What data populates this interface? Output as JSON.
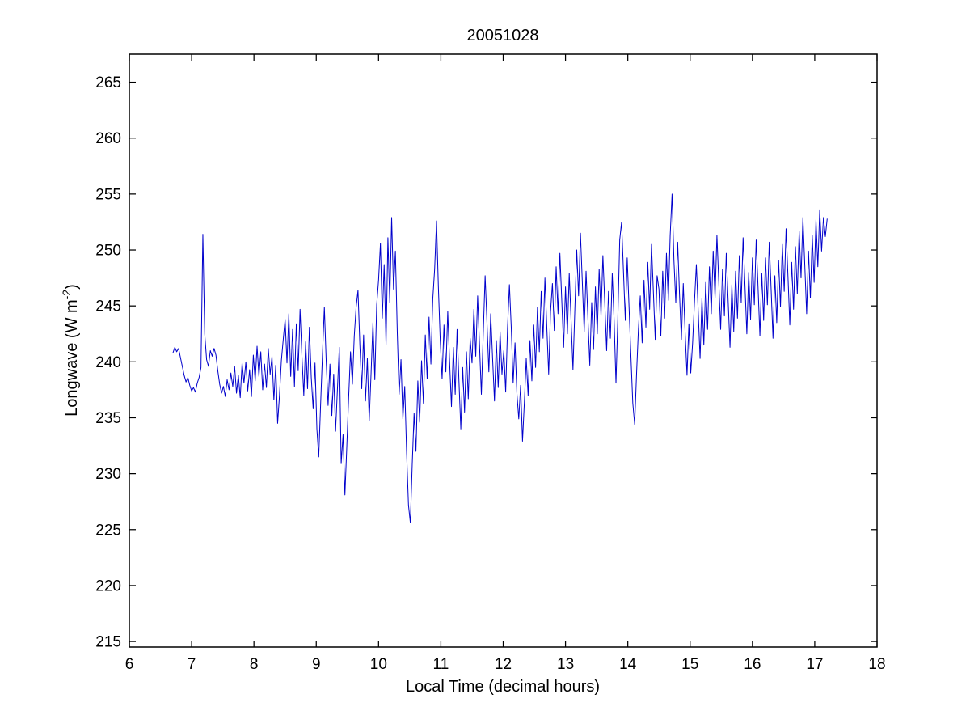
{
  "figure": {
    "title": "20051028",
    "xlabel": "Local Time (decimal hours)",
    "ylabel": {
      "prefix": "Longwave (W m",
      "superscript": "-2",
      "suffix": ")"
    }
  },
  "axes": {
    "xlim": [
      6,
      18
    ],
    "ylim": [
      214.5,
      267.5
    ],
    "xticks": [
      6,
      7,
      8,
      9,
      10,
      11,
      12,
      13,
      14,
      15,
      16,
      17,
      18
    ],
    "yticks": [
      215,
      220,
      225,
      230,
      235,
      240,
      245,
      250,
      255,
      260,
      265
    ],
    "box": true,
    "grid": false,
    "tick_direction": "in",
    "axis_color": "#000000"
  },
  "chart_data": {
    "type": "line",
    "title": "20051028",
    "xlabel": "Local Time (decimal hours)",
    "ylabel": "Longwave (W m^-2)",
    "line_color": "#0000CC",
    "line_width": 1,
    "xlim": [
      6,
      18
    ],
    "ylim": [
      214.5,
      267.5
    ],
    "x_start": 6.7,
    "x_step": 0.03,
    "y": [
      240.8,
      241.3,
      240.9,
      241.2,
      240.4,
      239.6,
      238.8,
      238.2,
      238.6,
      237.9,
      237.4,
      237.7,
      237.3,
      238.1,
      238.6,
      239.5,
      251.4,
      242.5,
      240.2,
      239.6,
      241.0,
      240.5,
      241.2,
      240.6,
      239.2,
      238.0,
      237.2,
      237.8,
      236.9,
      238.4,
      237.5,
      239.0,
      237.8,
      239.6,
      237.2,
      238.8,
      236.8,
      239.9,
      238.1,
      240.0,
      237.4,
      239.3,
      236.9,
      240.6,
      238.3,
      241.4,
      238.7,
      240.9,
      237.5,
      239.8,
      237.7,
      241.2,
      238.9,
      240.5,
      236.6,
      239.7,
      234.5,
      237.0,
      240.1,
      242.0,
      243.8,
      239.9,
      244.3,
      238.7,
      242.9,
      237.8,
      243.4,
      239.2,
      244.7,
      240.5,
      237.0,
      241.8,
      237.6,
      243.1,
      238.6,
      235.8,
      239.9,
      234.0,
      231.5,
      236.2,
      240.7,
      244.9,
      240.0,
      236.1,
      239.8,
      235.2,
      238.9,
      233.8,
      237.6,
      241.3,
      230.9,
      233.5,
      228.1,
      232.4,
      236.8,
      240.9,
      238.0,
      242.3,
      244.9,
      246.4,
      241.5,
      237.6,
      242.4,
      236.5,
      240.3,
      234.7,
      239.0,
      243.5,
      238.4,
      245.1,
      247.3,
      250.6,
      243.9,
      248.7,
      241.5,
      251.1,
      245.3,
      252.9,
      246.5,
      249.9,
      242.7,
      237.1,
      240.2,
      234.9,
      237.8,
      231.9,
      227.2,
      225.6,
      230.8,
      235.4,
      232.0,
      238.3,
      234.6,
      240.1,
      236.3,
      242.4,
      238.5,
      244.0,
      239.8,
      245.6,
      248.3,
      252.6,
      246.7,
      241.9,
      238.5,
      243.3,
      239.1,
      244.5,
      240.0,
      236.0,
      241.3,
      237.1,
      242.9,
      238.3,
      234.0,
      239.5,
      235.5,
      240.9,
      236.7,
      242.1,
      239.9,
      244.7,
      240.5,
      245.9,
      241.5,
      237.1,
      242.5,
      247.7,
      243.5,
      239.1,
      244.3,
      240.3,
      236.5,
      241.9,
      237.7,
      242.7,
      238.9,
      241.0,
      237.3,
      243.1,
      246.9,
      243.0,
      238.1,
      241.7,
      237.2,
      234.9,
      237.9,
      232.9,
      236.4,
      240.3,
      237.0,
      241.9,
      238.3,
      243.3,
      239.5,
      244.9,
      240.9,
      246.3,
      242.1,
      247.5,
      243.1,
      238.9,
      244.5,
      247.0,
      242.8,
      248.5,
      244.3,
      249.7,
      245.5,
      241.3,
      246.7,
      242.5,
      247.9,
      243.7,
      239.3,
      244.7,
      250.0,
      245.9,
      251.5,
      247.1,
      242.7,
      248.1,
      243.9,
      239.7,
      245.3,
      241.1,
      246.7,
      242.5,
      248.3,
      244.1,
      249.5,
      245.3,
      241.0,
      246.3,
      242.1,
      247.9,
      243.7,
      238.1,
      243.9,
      250.9,
      252.5,
      248.1,
      243.7,
      249.3,
      244.9,
      240.5,
      236.3,
      234.4,
      238.9,
      242.9,
      245.9,
      241.7,
      247.3,
      243.1,
      248.9,
      244.7,
      250.5,
      246.3,
      242.0,
      247.7,
      246.5,
      242.3,
      248.1,
      243.9,
      249.7,
      245.5,
      251.3,
      255.0,
      249.1,
      245.3,
      250.7,
      246.0,
      242.0,
      247.0,
      242.6,
      238.8,
      243.4,
      239.0,
      241.7,
      245.4,
      248.7,
      244.5,
      240.3,
      245.7,
      241.5,
      247.1,
      242.9,
      248.5,
      244.3,
      249.9,
      245.7,
      251.3,
      247.1,
      242.9,
      248.3,
      244.1,
      249.7,
      245.5,
      241.3,
      246.9,
      242.7,
      248.1,
      243.9,
      249.5,
      245.3,
      251.1,
      246.9,
      242.5,
      248.0,
      243.8,
      249.3,
      245.1,
      250.9,
      246.7,
      242.3,
      247.9,
      243.7,
      249.3,
      245.1,
      250.7,
      246.5,
      242.1,
      247.7,
      243.5,
      249.1,
      244.9,
      250.5,
      246.3,
      251.9,
      247.7,
      243.3,
      248.9,
      244.7,
      250.3,
      246.1,
      251.7,
      247.5,
      252.9,
      248.7,
      244.3,
      249.9,
      245.7,
      251.3,
      247.1,
      252.7,
      248.5,
      253.6,
      249.9,
      252.9,
      251.2,
      252.8
    ]
  }
}
